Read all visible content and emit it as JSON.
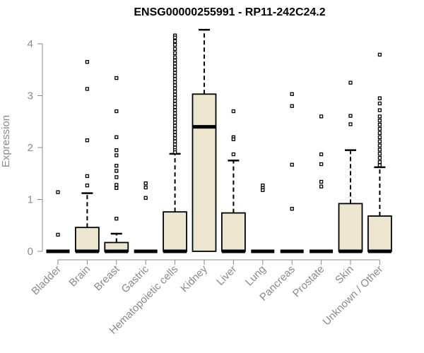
{
  "chart_data": {
    "type": "box",
    "title": "ENSG00000255991 - RP11-242C24.2",
    "xlabel": "",
    "ylabel": "Expression",
    "ylim": [
      0,
      4.25
    ],
    "yticks": [
      0,
      1,
      2,
      3,
      4
    ],
    "grid": false,
    "box_fill": "#ede6cf",
    "categories": [
      "Bladder",
      "Brain",
      "Breast",
      "Gastric",
      "Hematopoietic cells",
      "Kidney",
      "Liver",
      "Lung",
      "Pancreas",
      "Prostate",
      "Skin",
      "Unknown / Other"
    ],
    "boxes": [
      {
        "q1": 0,
        "median": 0,
        "q3": 0,
        "whisker_low": 0,
        "whisker_high": 0,
        "outliers": [
          1.14,
          0.32
        ]
      },
      {
        "q1": 0,
        "median": 0,
        "q3": 0.46,
        "whisker_low": 0,
        "whisker_high": 1.12,
        "outliers": [
          3.65,
          3.13,
          2.14,
          1.45,
          1.27
        ]
      },
      {
        "q1": 0,
        "median": 0,
        "q3": 0.17,
        "whisker_low": 0,
        "whisker_high": 0.34,
        "outliers": [
          3.34,
          2.7,
          2.2,
          1.95,
          1.85,
          1.65,
          1.55,
          1.43,
          1.28,
          1.22,
          0.63
        ]
      },
      {
        "q1": 0,
        "median": 0,
        "q3": 0,
        "whisker_low": 0,
        "whisker_high": 0,
        "outliers": [
          1.31,
          1.23,
          1.03
        ]
      },
      {
        "q1": 0,
        "median": 0,
        "q3": 0.76,
        "whisker_low": 0,
        "whisker_high": 1.88,
        "outliers": [
          4.16,
          4.12,
          4.05,
          3.98,
          3.9,
          3.82,
          3.74,
          3.68,
          3.62,
          3.56,
          3.5,
          3.44,
          3.38,
          3.32,
          3.26,
          3.2,
          3.14,
          3.08,
          3.02,
          2.96,
          2.9,
          2.84,
          2.78,
          2.72,
          2.66,
          2.6,
          2.54,
          2.48,
          2.42,
          2.36,
          2.3,
          2.24,
          2.18,
          2.12,
          2.06,
          2.0,
          1.95,
          1.91
        ]
      },
      {
        "q1": 0,
        "median": 2.4,
        "q3": 3.03,
        "whisker_low": 0,
        "whisker_high": 4.27,
        "outliers": []
      },
      {
        "q1": 0,
        "median": 0,
        "q3": 0.74,
        "whisker_low": 0,
        "whisker_high": 1.75,
        "outliers": [
          2.7,
          2.2,
          2.16,
          1.87
        ]
      },
      {
        "q1": 0,
        "median": 0,
        "q3": 0,
        "whisker_low": 0,
        "whisker_high": 0,
        "outliers": [
          1.27,
          1.22,
          1.18
        ]
      },
      {
        "q1": 0,
        "median": 0,
        "q3": 0,
        "whisker_low": 0,
        "whisker_high": 0,
        "outliers": [
          3.03,
          2.8,
          1.67,
          0.82
        ]
      },
      {
        "q1": 0,
        "median": 0,
        "q3": 0,
        "whisker_low": 0,
        "whisker_high": 0,
        "outliers": [
          2.6,
          1.87,
          1.68,
          1.34,
          1.25
        ]
      },
      {
        "q1": 0,
        "median": 0,
        "q3": 0.92,
        "whisker_low": 0,
        "whisker_high": 1.95,
        "outliers": [
          3.25,
          2.61,
          2.45
        ]
      },
      {
        "q1": 0,
        "median": 0,
        "q3": 0.68,
        "whisker_low": 0,
        "whisker_high": 1.62,
        "outliers": [
          3.79,
          2.95,
          2.85,
          2.72,
          2.6,
          2.52,
          2.44,
          2.36,
          2.28,
          2.2,
          2.12,
          2.04,
          1.96,
          1.88,
          1.8,
          1.72,
          1.66
        ]
      }
    ]
  }
}
